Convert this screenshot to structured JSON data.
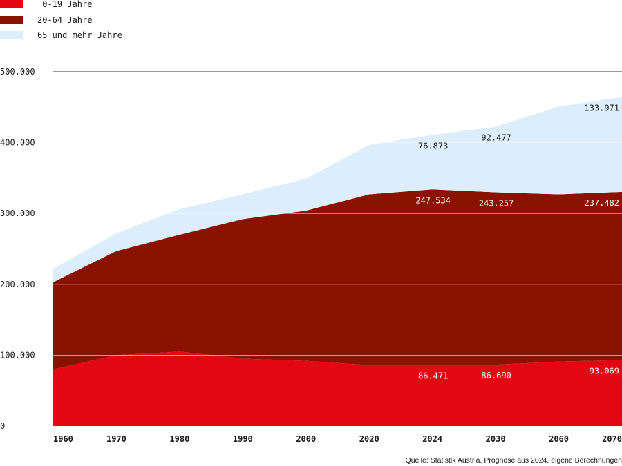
{
  "legend": {
    "items": [
      {
        "label": " 0-19 Jahre",
        "color": "#e30613"
      },
      {
        "label": "20-64 Jahre",
        "color": "#8b1100"
      },
      {
        "label": "65 und mehr Jahre",
        "color": "#dceefb"
      }
    ]
  },
  "source": "Quelle: Statistik Austria, Prognose aus 2024, eigene Berechnungen",
  "chart_data": {
    "type": "area",
    "stacked": true,
    "categories": [
      "1960",
      "1970",
      "1980",
      "1990",
      "2000",
      "2020",
      "2024",
      "2030",
      "2060",
      "2070"
    ],
    "series": [
      {
        "name": "0-19 Jahre",
        "color": "#e30613",
        "values": [
          80000,
          100000,
          105000,
          95000,
          92000,
          86000,
          86471,
          86690,
          91000,
          93069
        ]
      },
      {
        "name": "20-64 Jahre",
        "color": "#8b1100",
        "values": [
          123000,
          147000,
          165000,
          197000,
          212000,
          241000,
          247534,
          243257,
          236000,
          237482
        ]
      },
      {
        "name": "65 und mehr Jahre",
        "color": "#dceefb",
        "values": [
          19000,
          25000,
          36000,
          35000,
          45000,
          70000,
          76873,
          92477,
          124000,
          133971
        ]
      }
    ],
    "ylim": [
      0,
      500000
    ],
    "yticks": [
      0,
      100000,
      200000,
      300000,
      400000,
      500000
    ],
    "ytick_labels": [
      "0",
      "100.000",
      "200.000",
      "300.000",
      "400.000",
      "500.000"
    ],
    "data_labels": [
      {
        "series": 0,
        "category": "2024",
        "text": "86.471"
      },
      {
        "series": 0,
        "category": "2030",
        "text": "86.690"
      },
      {
        "series": 0,
        "category": "2070",
        "text": "93.069"
      },
      {
        "series": 1,
        "category": "2024",
        "text": "247.534"
      },
      {
        "series": 1,
        "category": "2030",
        "text": "243.257"
      },
      {
        "series": 1,
        "category": "2070",
        "text": "237.482"
      },
      {
        "series": 2,
        "category": "2024",
        "text": "76.873"
      },
      {
        "series": 2,
        "category": "2030",
        "text": "92.477"
      },
      {
        "series": 2,
        "category": "2070",
        "text": "133.971"
      }
    ],
    "grid": true,
    "legend_position": "top-left"
  }
}
